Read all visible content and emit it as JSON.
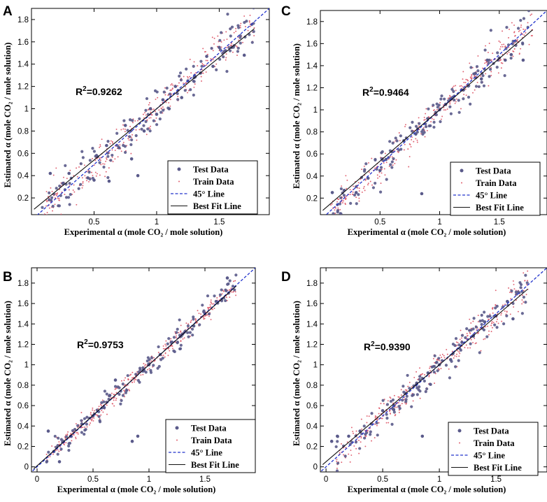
{
  "chart_data": [
    {
      "type": "scatter",
      "panel": "A",
      "xlabel": "Experimental α (mole CO₂ / mole solution)",
      "ylabel": "Estimated α (mole CO₂ / mole solution)",
      "xlim": [
        0,
        1.9
      ],
      "ylim": [
        0.05,
        1.9
      ],
      "xticks": [
        0.5,
        1,
        1.5
      ],
      "yticks": [
        0.2,
        0.4,
        0.6,
        0.8,
        1,
        1.2,
        1.4,
        1.6,
        1.8
      ],
      "annotation": {
        "base": "R",
        "sup": "2",
        "value": "=0.9262"
      },
      "best_fit": {
        "slope": 0.92,
        "intercept": 0.08
      },
      "noise": {
        "train": 0.07,
        "test": 0.1
      },
      "seed": 11,
      "test_points_sample": [
        [
          0.15,
          0.42
        ],
        [
          0.25,
          0.33
        ],
        [
          0.3,
          0.42
        ],
        [
          0.45,
          0.38
        ],
        [
          0.5,
          0.36
        ],
        [
          0.52,
          0.58
        ],
        [
          0.6,
          0.67
        ],
        [
          0.62,
          0.35
        ],
        [
          0.7,
          0.65
        ],
        [
          0.75,
          0.85
        ],
        [
          0.8,
          0.55
        ],
        [
          0.85,
          0.4
        ],
        [
          0.9,
          0.8
        ],
        [
          0.95,
          1.0
        ],
        [
          1.0,
          0.95
        ],
        [
          1.05,
          1.08
        ],
        [
          1.1,
          1.0
        ],
        [
          1.15,
          1.2
        ],
        [
          1.2,
          1.1
        ],
        [
          1.25,
          1.25
        ],
        [
          1.3,
          1.28
        ],
        [
          1.35,
          1.32
        ],
        [
          1.4,
          1.47
        ],
        [
          1.45,
          1.38
        ],
        [
          1.5,
          1.55
        ],
        [
          1.55,
          1.52
        ],
        [
          1.6,
          1.55
        ],
        [
          1.7,
          1.48
        ]
      ]
    },
    {
      "type": "scatter",
      "panel": "C",
      "xlabel": "Experimental α (mole CO₂ / mole solution)",
      "ylabel": "Estimated α (mole CO₂ / mole solution)",
      "xlim": [
        0,
        1.9
      ],
      "ylim": [
        0.05,
        1.9
      ],
      "xticks": [
        0.5,
        1,
        1.5
      ],
      "yticks": [
        0.2,
        0.4,
        0.6,
        0.8,
        1,
        1.2,
        1.4,
        1.6,
        1.8
      ],
      "annotation": {
        "base": "R",
        "sup": "2",
        "value": "=0.9464"
      },
      "best_fit": {
        "slope": 0.93,
        "intercept": 0.07
      },
      "noise": {
        "train": 0.06,
        "test": 0.085
      },
      "seed": 23,
      "test_points_sample": [
        [
          0.1,
          0.25
        ],
        [
          0.2,
          0.27
        ],
        [
          0.3,
          0.25
        ],
        [
          0.4,
          0.38
        ],
        [
          0.5,
          0.45
        ],
        [
          0.55,
          0.55
        ],
        [
          0.6,
          0.62
        ],
        [
          0.7,
          0.72
        ],
        [
          0.8,
          0.78
        ],
        [
          0.85,
          0.24
        ],
        [
          0.9,
          0.92
        ],
        [
          1.0,
          1.0
        ],
        [
          1.05,
          1.05
        ],
        [
          1.1,
          1.1
        ],
        [
          1.2,
          1.18
        ],
        [
          1.3,
          1.33
        ],
        [
          1.35,
          1.28
        ],
        [
          1.4,
          1.45
        ],
        [
          1.5,
          1.47
        ],
        [
          1.55,
          1.45
        ],
        [
          1.6,
          1.5
        ],
        [
          1.7,
          1.45
        ]
      ]
    },
    {
      "type": "scatter",
      "panel": "B",
      "xlabel": "Experimental α (mole CO₂ / mole solution)",
      "ylabel": "Estimated α (mole CO₂ / mole solution)",
      "xlim": [
        -0.05,
        1.95
      ],
      "ylim": [
        -0.05,
        1.95
      ],
      "xticks": [
        0,
        0.5,
        1,
        1.5
      ],
      "yticks": [
        0,
        0.2,
        0.4,
        0.6,
        0.8,
        1,
        1.2,
        1.4,
        1.6,
        1.8
      ],
      "annotation": {
        "base": "R",
        "sup": "2",
        "value": "=0.9753"
      },
      "best_fit": {
        "slope": 0.99,
        "intercept": 0.01
      },
      "noise": {
        "train": 0.035,
        "test": 0.06
      },
      "seed": 37,
      "test_points_sample": [
        [
          0.1,
          0.35
        ],
        [
          0.15,
          0.15
        ],
        [
          0.2,
          0.05
        ],
        [
          0.3,
          0.3
        ],
        [
          0.4,
          0.42
        ],
        [
          0.5,
          0.5
        ],
        [
          0.6,
          0.58
        ],
        [
          0.65,
          0.7
        ],
        [
          0.7,
          0.85
        ],
        [
          0.8,
          0.75
        ],
        [
          0.85,
          0.25
        ],
        [
          0.9,
          0.3
        ],
        [
          0.95,
          0.95
        ],
        [
          1.0,
          1.0
        ],
        [
          1.1,
          1.1
        ],
        [
          1.2,
          1.22
        ],
        [
          1.3,
          1.3
        ],
        [
          1.4,
          1.38
        ],
        [
          1.5,
          1.5
        ],
        [
          1.6,
          1.62
        ],
        [
          1.7,
          1.85
        ]
      ]
    },
    {
      "type": "scatter",
      "panel": "D",
      "xlabel": "Experimental α (mole CO₂ / mole solution)",
      "ylabel": "Estimated α (mole CO₂ / mole solution)",
      "xlim": [
        -0.05,
        1.95
      ],
      "ylim": [
        -0.05,
        1.95
      ],
      "xticks": [
        0,
        0.5,
        1,
        1.5
      ],
      "yticks": [
        0,
        0.2,
        0.4,
        0.6,
        0.8,
        1,
        1.2,
        1.4,
        1.6,
        1.8
      ],
      "annotation": {
        "base": "R",
        "sup": "2",
        "value": "=0.9390"
      },
      "best_fit": {
        "slope": 0.95,
        "intercept": 0.05
      },
      "noise": {
        "train": 0.065,
        "test": 0.09
      },
      "seed": 53,
      "test_points_sample": [
        [
          0.05,
          0.25
        ],
        [
          0.1,
          0.3
        ],
        [
          0.2,
          0.3
        ],
        [
          0.3,
          0.35
        ],
        [
          0.4,
          0.42
        ],
        [
          0.5,
          0.55
        ],
        [
          0.6,
          0.6
        ],
        [
          0.7,
          0.72
        ],
        [
          0.8,
          0.82
        ],
        [
          0.85,
          0.3
        ],
        [
          0.9,
          0.92
        ],
        [
          1.0,
          1.0
        ],
        [
          1.1,
          1.05
        ],
        [
          1.2,
          1.22
        ],
        [
          1.3,
          1.28
        ],
        [
          1.4,
          1.42
        ],
        [
          1.5,
          1.48
        ],
        [
          1.6,
          1.62
        ],
        [
          1.65,
          1.45
        ]
      ]
    }
  ],
  "legend": {
    "test": "Test Data",
    "train": "Train Data",
    "line45": "45° Line",
    "bestfit": "Best Fit Line"
  },
  "colors": {
    "test": "#5a5a8a",
    "train": "#e06070",
    "line45": "#2233cc",
    "bestfit": "#111111"
  }
}
